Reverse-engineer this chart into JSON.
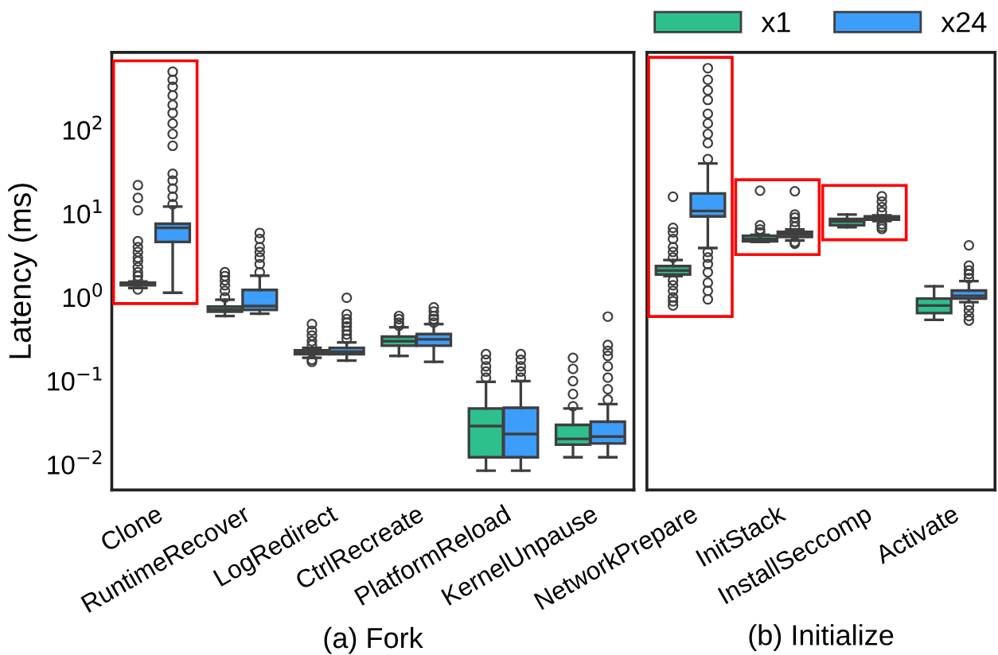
{
  "chart_data": [
    {
      "type": "box",
      "xlabel": "(a) Fork",
      "ylabel": "Latency (ms)",
      "log": true,
      "ylim": [
        0.005,
        850
      ],
      "yticks": [
        {
          "value": 0.01,
          "label": "10$^{−2}$"
        },
        {
          "value": 0.1,
          "label": "10$^{−1}$"
        },
        {
          "value": 1,
          "label": "10$^{0}$"
        },
        {
          "value": 10,
          "label": "10$^{1}$"
        },
        {
          "value": 100,
          "label": "10$^{2}$"
        }
      ],
      "grid": false,
      "categories": [
        "Clone",
        "RuntimeRecover",
        "LogRedirect",
        "CtrlRecreate",
        "PlatformReload",
        "KernelUnpause"
      ],
      "series": [
        {
          "color": "#2dbf8c",
          "boxes": [
            {
              "low": 1.3,
              "q1": 1.4,
              "median": 1.45,
              "q3": 1.5,
              "high": 1.55,
              "outliers": [
                1.25,
                1.6,
                1.8,
                2,
                2.3,
                2.7,
                3,
                3.5,
                4,
                4.7,
                11,
                15.5,
                22
              ]
            },
            {
              "low": 0.6,
              "q1": 0.675,
              "median": 0.72,
              "q3": 0.78,
              "high": 0.94,
              "outliers": [
                1.0,
                1.2,
                1.4,
                1.6,
                1.8,
                2.0
              ]
            },
            {
              "low": 0.19,
              "q1": 0.21,
              "median": 0.22,
              "q3": 0.234,
              "high": 0.25,
              "outliers": [
                0.17,
                0.18,
                0.27,
                0.3,
                0.35,
                0.4,
                0.48
              ]
            },
            {
              "low": 0.2,
              "q1": 0.265,
              "median": 0.3,
              "q3": 0.34,
              "high": 0.44,
              "outliers": [
                0.46,
                0.5,
                0.55,
                0.6
              ]
            },
            {
              "low": 0.0085,
              "q1": 0.0123,
              "median": 0.029,
              "q3": 0.047,
              "high": 0.098,
              "outliers": [
                0.11,
                0.13,
                0.15,
                0.18,
                0.21
              ]
            },
            {
              "low": 0.0123,
              "q1": 0.0174,
              "median": 0.0204,
              "q3": 0.03,
              "high": 0.047,
              "outliers": [
                0.05,
                0.07,
                0.1,
                0.14,
                0.19
              ]
            }
          ]
        },
        {
          "color": "#3d9dfa",
          "boxes": [
            {
              "low": 1.14,
              "q1": 4.6,
              "median": 6.8,
              "q3": 7.6,
              "high": 12.2,
              "outliers": [
                13,
                16,
                20,
                25,
                30,
                65,
                90,
                120,
                160,
                200,
                260,
                330,
                400,
                500
              ]
            },
            {
              "low": 0.64,
              "q1": 0.71,
              "median": 0.79,
              "q3": 1.23,
              "high": 1.82,
              "outliers": [
                2,
                2.5,
                3,
                3.5,
                4,
                5,
                5.9
              ]
            },
            {
              "low": 0.176,
              "q1": 0.21,
              "median": 0.225,
              "q3": 0.25,
              "high": 0.29,
              "outliers": [
                0.32,
                0.36,
                0.4,
                0.45,
                0.5,
                0.55,
                0.63,
                0.99
              ]
            },
            {
              "low": 0.17,
              "q1": 0.265,
              "median": 0.316,
              "q3": 0.365,
              "high": 0.48,
              "outliers": [
                0.5,
                0.55,
                0.6,
                0.68,
                0.76
              ]
            },
            {
              "low": 0.0085,
              "q1": 0.0123,
              "median": 0.0233,
              "q3": 0.048,
              "high": 0.1,
              "outliers": [
                0.11,
                0.13,
                0.15,
                0.18,
                0.21
              ]
            },
            {
              "low": 0.0123,
              "q1": 0.018,
              "median": 0.0217,
              "q3": 0.0327,
              "high": 0.053,
              "outliers": [
                0.06,
                0.08,
                0.11,
                0.15,
                0.2,
                0.23,
                0.27,
                0.59
              ]
            }
          ]
        }
      ]
    },
    {
      "type": "box",
      "xlabel": "(b) Initialize",
      "log": true,
      "ylim": [
        0.005,
        850
      ],
      "tick_labels": "x",
      "grid": false,
      "legend": "top",
      "categories": [
        "NetworkPrepare",
        "InitStack",
        "InstallSeccomp",
        "Activate"
      ],
      "series": [
        {
          "name": "x1",
          "color": "#2dbf8c",
          "boxes": [
            {
              "low": 1.8,
              "q1": 1.88,
              "median": 2.1,
              "q3": 2.37,
              "high": 2.8,
              "outliers": [
                0.8,
                0.9,
                1.0,
                1.2,
                1.4,
                1.6,
                3,
                3.5,
                4,
                5,
                6,
                6.8,
                16
              ]
            },
            {
              "low": 4.6,
              "q1": 4.7,
              "median": 5.0,
              "q3": 5.46,
              "high": 5.6,
              "outliers": [
                6,
                6.5,
                7.3,
                18.9
              ]
            },
            {
              "low": 6.9,
              "q1": 7.3,
              "median": 8.1,
              "q3": 8.7,
              "high": 9.8
            },
            {
              "low": 0.54,
              "q1": 0.65,
              "median": 0.8,
              "q3": 0.97,
              "high": 1.36
            }
          ]
        },
        {
          "name": "x24",
          "color": "#3d9dfa",
          "boxes": [
            {
              "low": 3.9,
              "q1": 9.3,
              "median": 10.8,
              "q3": 17.5,
              "high": 40,
              "outliers": [
                0.95,
                1.2,
                1.5,
                2,
                2.5,
                3,
                3.5,
                45,
                70,
                90,
                120,
                157,
                230,
                300,
                400,
                550
              ]
            },
            {
              "low": 4.8,
              "q1": 5.3,
              "median": 5.7,
              "q3": 6.1,
              "high": 6.5,
              "outliers": [
                4.4,
                4.6,
                7,
                8,
                9,
                9.8,
                18.6
              ]
            },
            {
              "low": 8.2,
              "q1": 8.5,
              "median": 8.9,
              "q3": 9.3,
              "high": 9.6,
              "outliers": [
                6.6,
                7,
                7.5,
                10.5,
                12,
                14,
                16.2
              ]
            },
            {
              "low": 0.88,
              "q1": 0.97,
              "median": 1.045,
              "q3": 1.21,
              "high": 1.57,
              "outliers": [
                0.53,
                0.6,
                0.7,
                0.8,
                1.7,
                1.9,
                2.1,
                2.4,
                4.2
              ]
            }
          ]
        }
      ]
    }
  ]
}
